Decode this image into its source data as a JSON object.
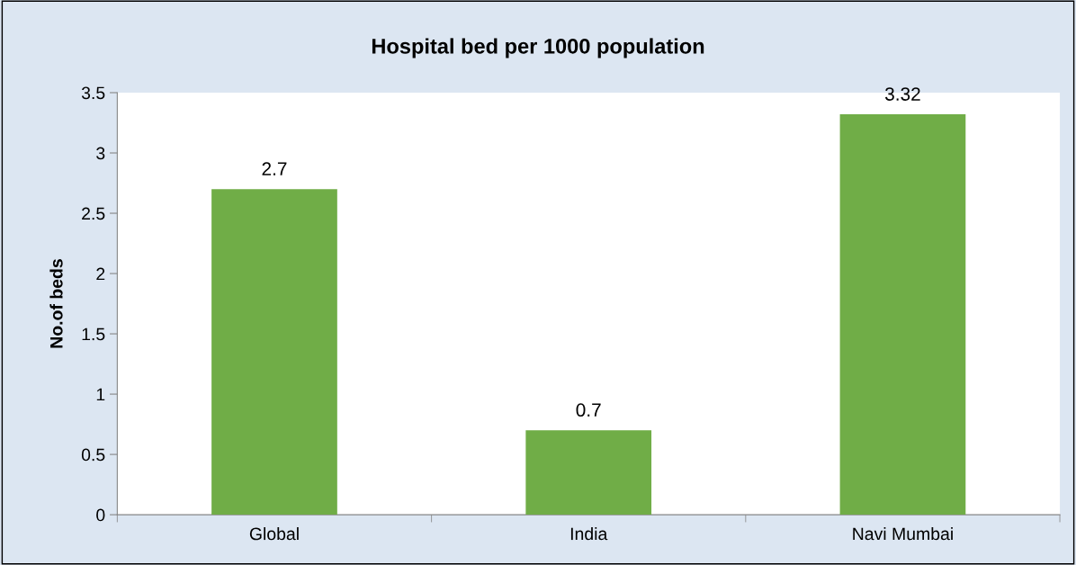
{
  "chart_data": {
    "type": "bar",
    "title": "Hospital bed per 1000 population",
    "ylabel": "No.of beds",
    "categories": [
      "Global",
      "India",
      "Navi Mumbai"
    ],
    "values": [
      2.7,
      0.7,
      3.32
    ],
    "color": "#70ad47",
    "ylim": [
      0,
      3.5
    ],
    "yticks": [
      0,
      0.5,
      1,
      1.5,
      2,
      2.5,
      3,
      3.5
    ],
    "grid": false,
    "data_labels": true
  }
}
